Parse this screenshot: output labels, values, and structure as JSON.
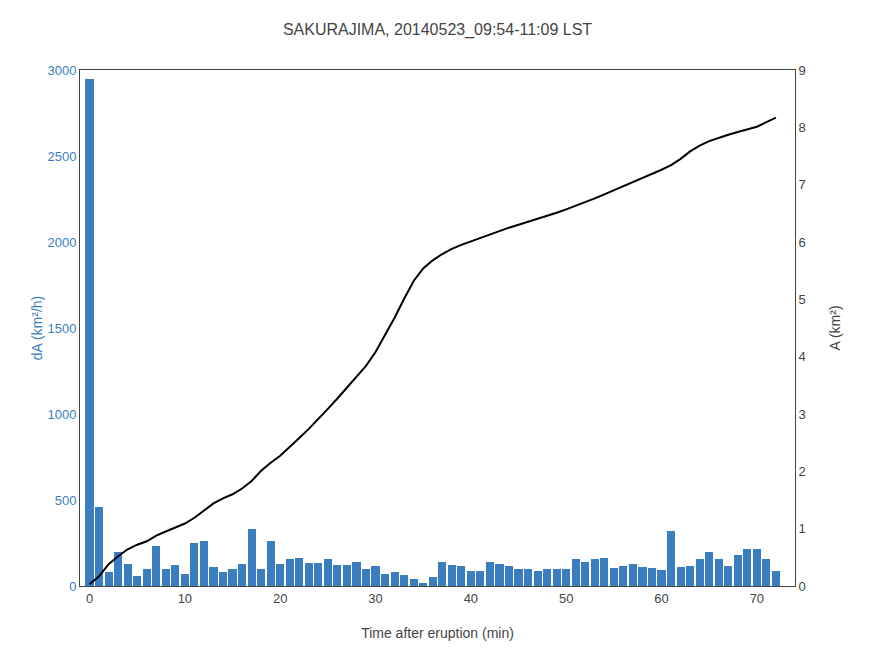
{
  "chart_data": {
    "type": "bar",
    "title": "SAKURAJIMA, 20140523_09:54-11:09 LST",
    "xlabel": "Time after eruption (min)",
    "ylabel": "dA (km²/h)",
    "y2label": "A (km²)",
    "x": [
      0,
      1,
      2,
      3,
      4,
      5,
      6,
      7,
      8,
      9,
      10,
      11,
      12,
      13,
      14,
      15,
      16,
      17,
      18,
      19,
      20,
      21,
      22,
      23,
      24,
      25,
      26,
      27,
      28,
      29,
      30,
      31,
      32,
      33,
      34,
      35,
      36,
      37,
      38,
      39,
      40,
      41,
      42,
      43,
      44,
      45,
      46,
      47,
      48,
      49,
      50,
      51,
      52,
      53,
      54,
      55,
      56,
      57,
      58,
      59,
      60,
      61,
      62,
      63,
      64,
      65,
      66,
      67,
      68,
      69,
      70,
      71,
      72
    ],
    "series": [
      {
        "type": "bar",
        "color": "#3a7ebf",
        "values": [
          2950,
          460,
          80,
          200,
          130,
          60,
          100,
          230,
          100,
          120,
          70,
          250,
          260,
          110,
          80,
          100,
          130,
          330,
          100,
          260,
          130,
          155,
          165,
          135,
          135,
          155,
          120,
          125,
          140,
          100,
          115,
          70,
          80,
          65,
          40,
          20,
          55,
          140,
          120,
          115,
          90,
          85,
          140,
          130,
          115,
          100,
          100,
          90,
          100,
          100,
          100,
          155,
          140,
          155,
          160,
          105,
          115,
          130,
          110,
          105,
          95,
          320,
          110,
          115,
          155,
          195,
          155,
          115,
          180,
          215,
          215,
          155,
          85
        ]
      },
      {
        "type": "line",
        "axis": "y2",
        "color": "#000000",
        "values": [
          0.03,
          0.17,
          0.38,
          0.52,
          0.64,
          0.72,
          0.78,
          0.88,
          0.95,
          1.02,
          1.09,
          1.19,
          1.32,
          1.44,
          1.53,
          1.6,
          1.7,
          1.83,
          2.01,
          2.15,
          2.27,
          2.42,
          2.58,
          2.74,
          2.91,
          3.09,
          3.27,
          3.46,
          3.64,
          3.84,
          4.08,
          4.37,
          4.68,
          5.01,
          5.32,
          5.54,
          5.68,
          5.79,
          5.88,
          5.95,
          6.01,
          6.08,
          6.14,
          6.19,
          6.25,
          6.3,
          6.35,
          6.4,
          6.45,
          6.51,
          6.57,
          6.63,
          6.7,
          6.76,
          6.83,
          6.9,
          6.98,
          7.05,
          7.12,
          7.19,
          7.26,
          7.34,
          7.45,
          7.58,
          7.68,
          7.76,
          7.82,
          7.87,
          7.92,
          7.97,
          8.01,
          8.09,
          8.17
        ]
      }
    ],
    "xlim": [
      -1,
      74
    ],
    "xticks": [
      0,
      10,
      20,
      30,
      40,
      50,
      60,
      70
    ],
    "ylim": [
      0,
      3000
    ],
    "yticks": [
      0,
      500,
      1000,
      1500,
      2000,
      2500,
      3000
    ],
    "y2lim": [
      0,
      9
    ],
    "y2ticks": [
      0,
      1,
      2,
      3,
      4,
      5,
      6,
      7,
      8,
      9
    ],
    "grid": false
  }
}
